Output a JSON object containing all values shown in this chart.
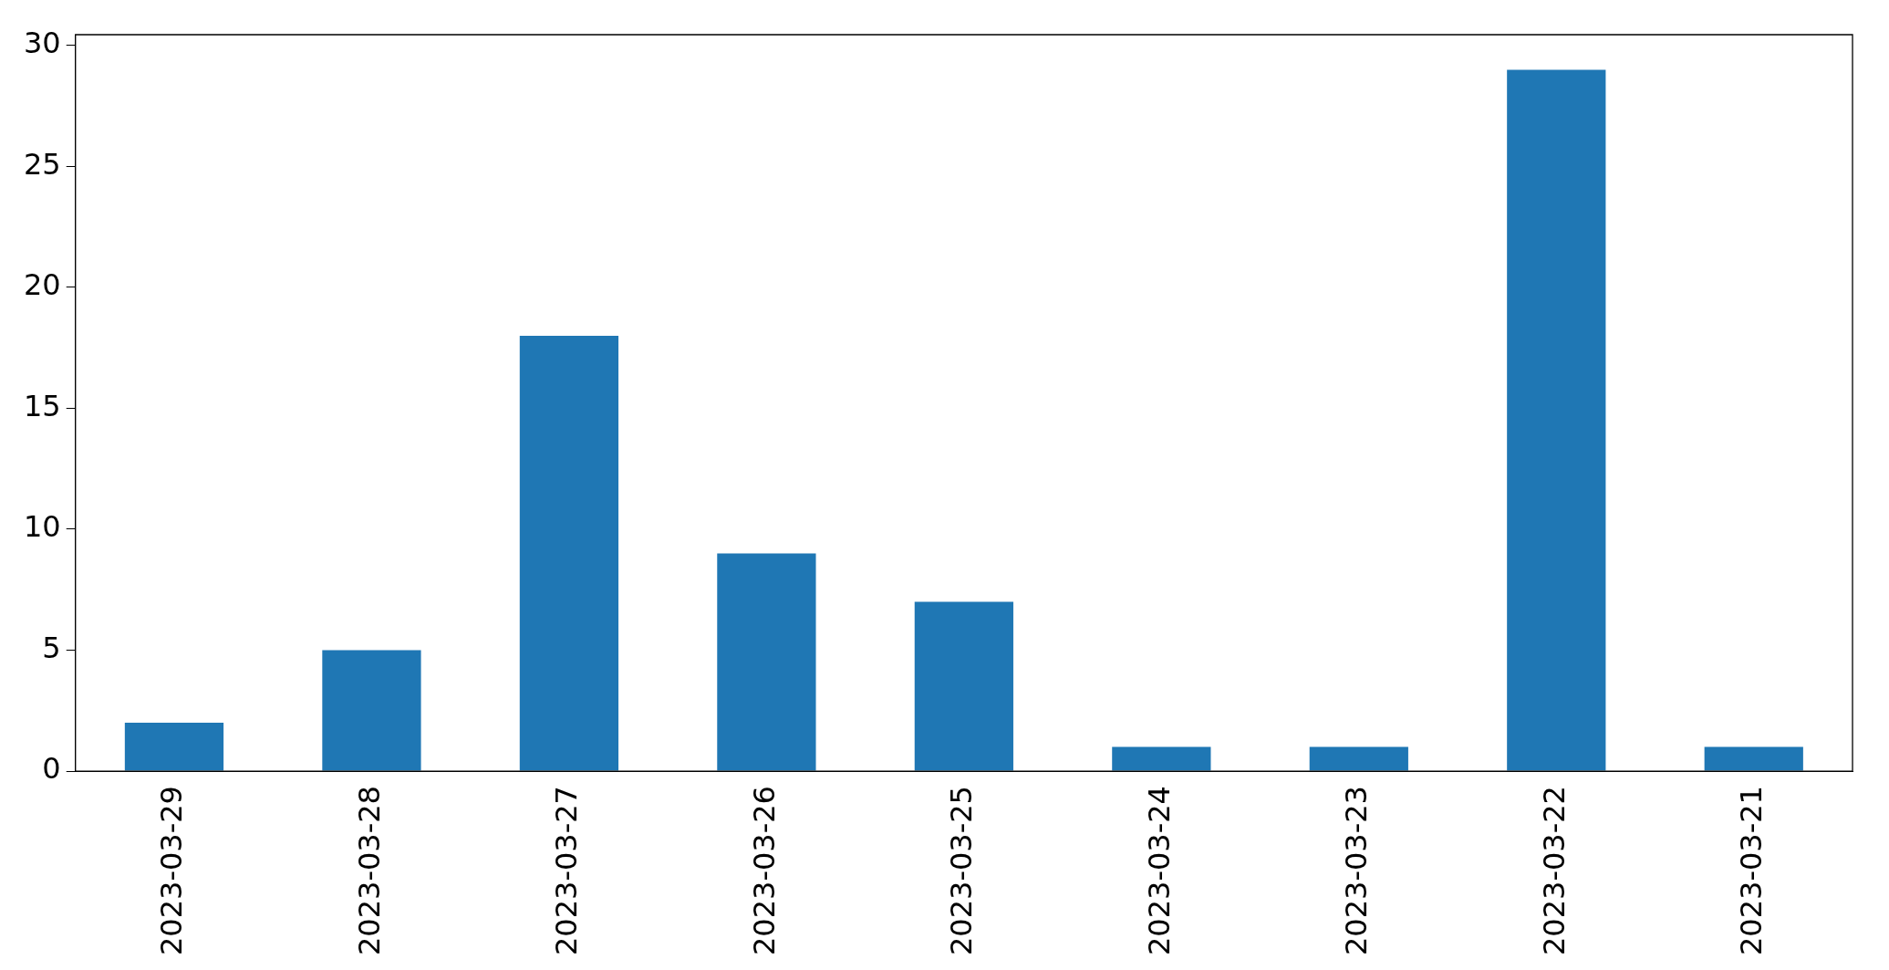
{
  "chart_data": {
    "type": "bar",
    "categories": [
      "2023-03-29",
      "2023-03-28",
      "2023-03-27",
      "2023-03-26",
      "2023-03-25",
      "2023-03-24",
      "2023-03-23",
      "2023-03-22",
      "2023-03-21"
    ],
    "values": [
      2,
      5,
      18,
      9,
      7,
      1,
      1,
      29,
      1
    ],
    "color": "#1f77b4",
    "ylim": [
      0,
      30.45
    ],
    "yticks": [
      0,
      5,
      10,
      15,
      20,
      25,
      30
    ],
    "grid": false,
    "legend": false
  }
}
